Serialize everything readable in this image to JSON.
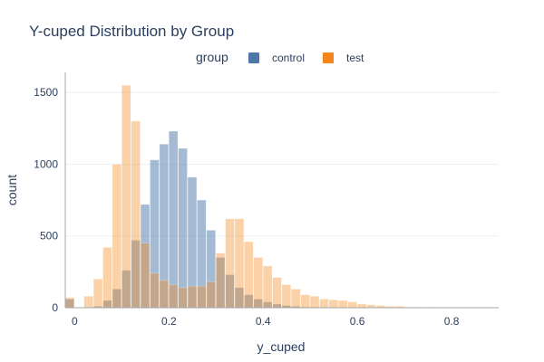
{
  "chart_data": {
    "type": "bar",
    "title": "Y-cuped Distribution by Group",
    "xlabel": "y_cuped",
    "ylabel": "count",
    "xlim": [
      -0.02,
      0.9
    ],
    "ylim": [
      0,
      1640
    ],
    "bin_start": -0.02,
    "bin_width": 0.02,
    "x_ticks": [
      0,
      0.2,
      0.4,
      0.6,
      0.8
    ],
    "x_tick_labels": [
      "0",
      "0.2",
      "0.4",
      "0.6",
      "0.8"
    ],
    "y_ticks": [
      0,
      500,
      1000,
      1500
    ],
    "y_tick_labels": [
      "0",
      "500",
      "1000",
      "1500"
    ],
    "grid": true,
    "legend": {
      "title": "group",
      "placement": "top-center"
    },
    "series": [
      {
        "name": "control",
        "color": "#4c78a8",
        "values": [
          60,
          0,
          0,
          10,
          50,
          130,
          260,
          470,
          720,
          1030,
          1140,
          1230,
          1110,
          910,
          750,
          540,
          350,
          230,
          140,
          90,
          60,
          40,
          25,
          15,
          10,
          5,
          5,
          3,
          2,
          2,
          1,
          1,
          0,
          0,
          0,
          0,
          0,
          0,
          0,
          0,
          0,
          0,
          0,
          0,
          0,
          0
        ]
      },
      {
        "name": "test",
        "color": "#f58518",
        "values": [
          70,
          0,
          80,
          200,
          420,
          1000,
          1550,
          1300,
          450,
          240,
          190,
          160,
          140,
          150,
          150,
          180,
          380,
          620,
          620,
          460,
          350,
          290,
          210,
          160,
          130,
          90,
          80,
          60,
          55,
          50,
          40,
          25,
          20,
          15,
          10,
          10,
          5,
          5,
          5,
          5,
          3,
          2,
          1,
          1,
          0,
          0
        ]
      }
    ]
  }
}
